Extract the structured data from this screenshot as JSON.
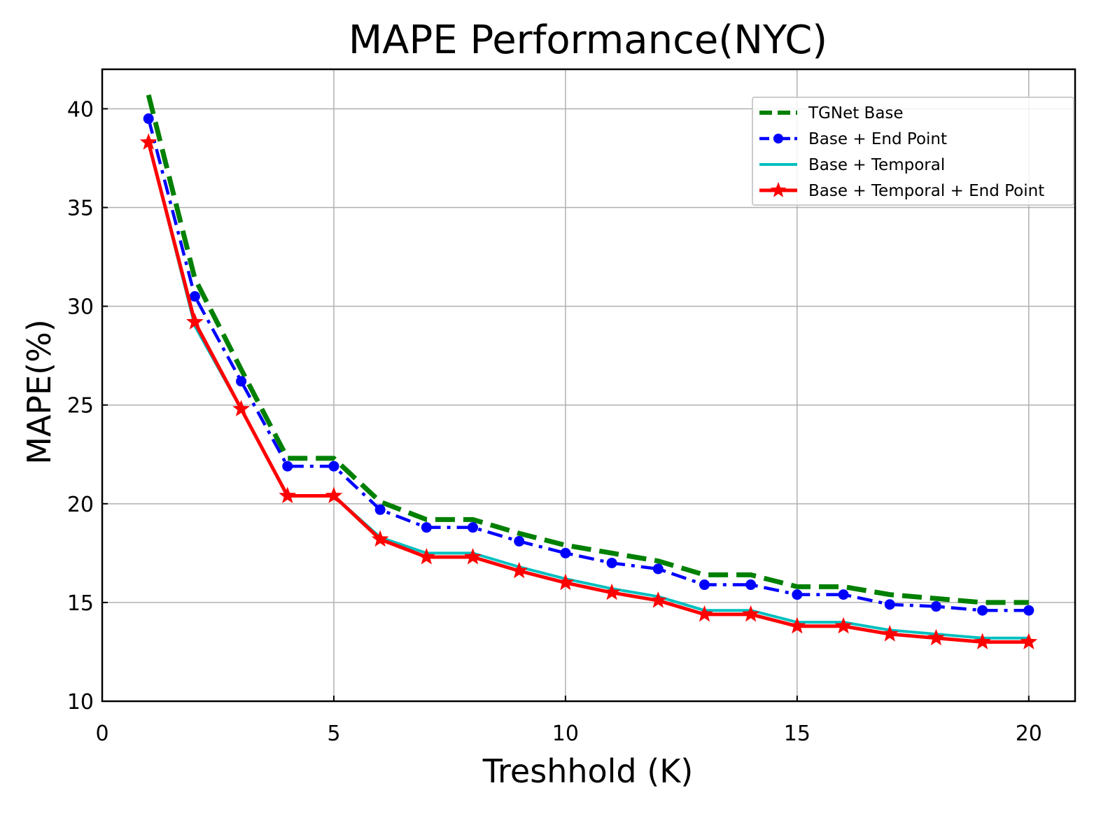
{
  "chart_data": {
    "type": "line",
    "title": "MAPE Performance(NYC)",
    "xlabel": "Treshhold (K)",
    "ylabel": "MAPE(%)",
    "xlim": [
      0,
      21
    ],
    "ylim": [
      10,
      42
    ],
    "xticks": [
      0,
      5,
      10,
      15,
      20
    ],
    "yticks": [
      10,
      15,
      20,
      25,
      30,
      35,
      40
    ],
    "grid": true,
    "legend_position": "top-right",
    "x": [
      1,
      2,
      3,
      4,
      5,
      6,
      7,
      8,
      9,
      10,
      11,
      12,
      13,
      14,
      15,
      16,
      17,
      18,
      19,
      20
    ],
    "series": [
      {
        "name": "TGNet Base",
        "color": "#008000",
        "style": "dashed",
        "marker": "none",
        "values": [
          40.7,
          31.4,
          26.8,
          22.3,
          22.3,
          20.1,
          19.2,
          19.2,
          18.5,
          17.9,
          17.5,
          17.1,
          16.4,
          16.4,
          15.8,
          15.8,
          15.4,
          15.2,
          15.0,
          15.0
        ]
      },
      {
        "name": "Base + End Point",
        "color": "#0000ff",
        "style": "dashdot",
        "marker": "circle",
        "values": [
          39.5,
          30.5,
          26.2,
          21.9,
          21.9,
          19.7,
          18.8,
          18.8,
          18.1,
          17.5,
          17.0,
          16.7,
          15.9,
          15.9,
          15.4,
          15.4,
          14.9,
          14.8,
          14.6,
          14.6
        ]
      },
      {
        "name": "Base + Temporal",
        "color": "#00bfbf",
        "style": "solid",
        "marker": "none",
        "values": [
          38.3,
          29.0,
          24.8,
          20.4,
          20.4,
          18.3,
          17.5,
          17.5,
          16.8,
          16.2,
          15.7,
          15.3,
          14.6,
          14.6,
          14.0,
          14.0,
          13.6,
          13.4,
          13.2,
          13.2
        ]
      },
      {
        "name": "Base + Temporal + End Point",
        "color": "#ff0000",
        "style": "solid",
        "marker": "star",
        "values": [
          38.3,
          29.2,
          24.8,
          20.4,
          20.4,
          18.2,
          17.3,
          17.3,
          16.6,
          16.0,
          15.5,
          15.1,
          14.4,
          14.4,
          13.8,
          13.8,
          13.4,
          13.2,
          13.0,
          13.0
        ]
      }
    ]
  }
}
